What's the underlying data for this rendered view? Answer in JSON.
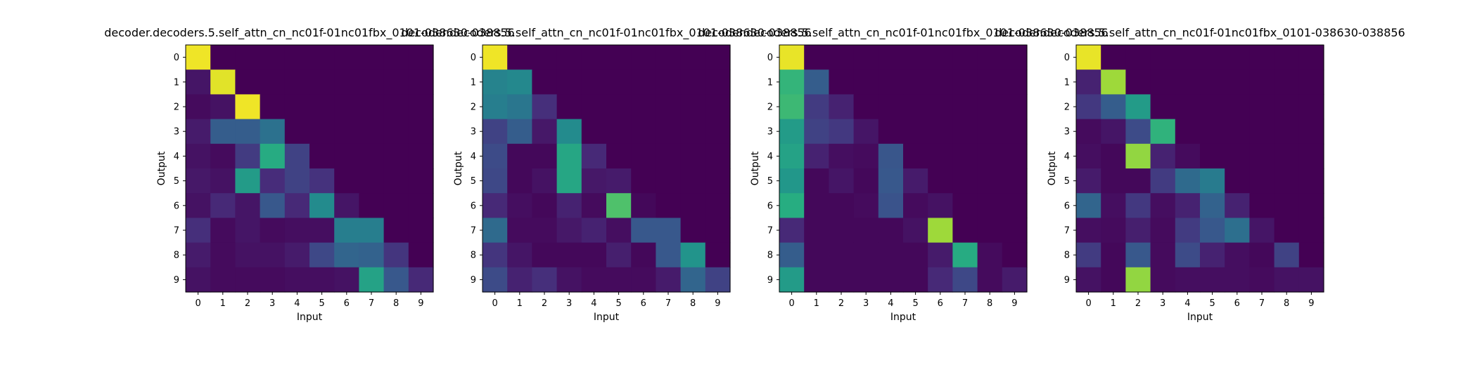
{
  "chart_data": [
    {
      "type": "heatmap",
      "title": "decoder.decoders.5.self_attn_cn_nc01f-01nc01fbx_0101-038630-038856",
      "xlabel": "Input",
      "ylabel": "Output",
      "x_ticks": [
        "0",
        "1",
        "2",
        "3",
        "4",
        "5",
        "6",
        "7",
        "8",
        "9"
      ],
      "y_ticks": [
        "0",
        "1",
        "2",
        "3",
        "4",
        "5",
        "6",
        "7",
        "8",
        "9"
      ],
      "colormap": "viridis",
      "value_range": [
        0,
        1
      ],
      "values": [
        [
          0.98,
          0,
          0,
          0,
          0,
          0,
          0,
          0,
          0,
          0
        ],
        [
          0.06,
          0.96,
          0,
          0,
          0,
          0,
          0,
          0,
          0,
          0
        ],
        [
          0.03,
          0.05,
          0.98,
          0,
          0,
          0,
          0,
          0,
          0,
          0
        ],
        [
          0.08,
          0.3,
          0.3,
          0.38,
          0,
          0,
          0,
          0,
          0,
          0
        ],
        [
          0.05,
          0.03,
          0.18,
          0.62,
          0.2,
          0,
          0,
          0,
          0,
          0
        ],
        [
          0.07,
          0.05,
          0.55,
          0.13,
          0.2,
          0.15,
          0,
          0,
          0,
          0
        ],
        [
          0.05,
          0.12,
          0.06,
          0.28,
          0.12,
          0.48,
          0.06,
          0,
          0,
          0
        ],
        [
          0.14,
          0.03,
          0.06,
          0.03,
          0.04,
          0.04,
          0.43,
          0.43,
          0,
          0
        ],
        [
          0.08,
          0.03,
          0.05,
          0.05,
          0.08,
          0.22,
          0.33,
          0.32,
          0.16,
          0
        ],
        [
          0.05,
          0.03,
          0.03,
          0.03,
          0.04,
          0.04,
          0.05,
          0.58,
          0.28,
          0.12
        ]
      ]
    },
    {
      "type": "heatmap",
      "title": "decoder.decoders.5.self_attn_cn_nc01f-01nc01fbx_0101-038630-038856",
      "xlabel": "Input",
      "ylabel": "Output",
      "x_ticks": [
        "0",
        "1",
        "2",
        "3",
        "4",
        "5",
        "6",
        "7",
        "8",
        "9"
      ],
      "y_ticks": [
        "0",
        "1",
        "2",
        "3",
        "4",
        "5",
        "6",
        "7",
        "8",
        "9"
      ],
      "colormap": "viridis",
      "value_range": [
        0,
        1
      ],
      "values": [
        [
          0.98,
          0,
          0,
          0,
          0,
          0,
          0,
          0,
          0,
          0
        ],
        [
          0.45,
          0.47,
          0,
          0,
          0,
          0,
          0,
          0,
          0,
          0
        ],
        [
          0.43,
          0.4,
          0.14,
          0,
          0,
          0,
          0,
          0,
          0,
          0
        ],
        [
          0.2,
          0.3,
          0.07,
          0.48,
          0,
          0,
          0,
          0,
          0,
          0
        ],
        [
          0.23,
          0.02,
          0.02,
          0.6,
          0.12,
          0,
          0,
          0,
          0,
          0
        ],
        [
          0.22,
          0.02,
          0.05,
          0.6,
          0.07,
          0.08,
          0,
          0,
          0,
          0
        ],
        [
          0.12,
          0.04,
          0.02,
          0.1,
          0.03,
          0.72,
          0.02,
          0,
          0,
          0
        ],
        [
          0.35,
          0.03,
          0.03,
          0.07,
          0.1,
          0.04,
          0.28,
          0.28,
          0,
          0
        ],
        [
          0.16,
          0.06,
          0.02,
          0.02,
          0.02,
          0.09,
          0.02,
          0.28,
          0.52,
          0
        ],
        [
          0.23,
          0.1,
          0.14,
          0.05,
          0.03,
          0.03,
          0.03,
          0.08,
          0.33,
          0.2
        ]
      ]
    },
    {
      "type": "heatmap",
      "title": "decoder.decoders.5.self_attn_cn_nc01f-01nc01fbx_0101-038630-038856",
      "xlabel": "Input",
      "ylabel": "Output",
      "x_ticks": [
        "0",
        "1",
        "2",
        "3",
        "4",
        "5",
        "6",
        "7",
        "8",
        "9"
      ],
      "y_ticks": [
        "0",
        "1",
        "2",
        "3",
        "4",
        "5",
        "6",
        "7",
        "8",
        "9"
      ],
      "colormap": "viridis",
      "value_range": [
        0,
        1
      ],
      "values": [
        [
          0.97,
          0,
          0,
          0,
          0,
          0,
          0,
          0,
          0,
          0
        ],
        [
          0.66,
          0.3,
          0,
          0,
          0,
          0,
          0,
          0,
          0,
          0
        ],
        [
          0.68,
          0.18,
          0.1,
          0,
          0,
          0,
          0,
          0,
          0,
          0
        ],
        [
          0.55,
          0.2,
          0.17,
          0.06,
          0,
          0,
          0,
          0,
          0,
          0
        ],
        [
          0.58,
          0.1,
          0.04,
          0.03,
          0.27,
          0,
          0,
          0,
          0,
          0
        ],
        [
          0.53,
          0.02,
          0.06,
          0.02,
          0.28,
          0.08,
          0,
          0,
          0,
          0
        ],
        [
          0.63,
          0.02,
          0.02,
          0.03,
          0.26,
          0.03,
          0.05,
          0,
          0,
          0
        ],
        [
          0.12,
          0.02,
          0.02,
          0.02,
          0.02,
          0.05,
          0.86,
          0,
          0,
          0
        ],
        [
          0.3,
          0.02,
          0.02,
          0.02,
          0.02,
          0.02,
          0.08,
          0.62,
          0.03,
          0
        ],
        [
          0.55,
          0.02,
          0.02,
          0.02,
          0.02,
          0.02,
          0.12,
          0.22,
          0.03,
          0.08
        ]
      ]
    },
    {
      "type": "heatmap",
      "title": "decoder.decoders.5.self_attn_cn_nc01f-01nc01fbx_0101-038630-038856",
      "xlabel": "Input",
      "ylabel": "Output",
      "x_ticks": [
        "0",
        "1",
        "2",
        "3",
        "4",
        "5",
        "6",
        "7",
        "8",
        "9"
      ],
      "y_ticks": [
        "0",
        "1",
        "2",
        "3",
        "4",
        "5",
        "6",
        "7",
        "8",
        "9"
      ],
      "colormap": "viridis",
      "value_range": [
        0,
        1
      ],
      "values": [
        [
          0.97,
          0,
          0,
          0,
          0,
          0,
          0,
          0,
          0,
          0
        ],
        [
          0.1,
          0.86,
          0,
          0,
          0,
          0,
          0,
          0,
          0,
          0
        ],
        [
          0.17,
          0.3,
          0.55,
          0,
          0,
          0,
          0,
          0,
          0,
          0
        ],
        [
          0.03,
          0.06,
          0.23,
          0.65,
          0,
          0,
          0,
          0,
          0,
          0
        ],
        [
          0.04,
          0.02,
          0.84,
          0.1,
          0.03,
          0,
          0,
          0,
          0,
          0
        ],
        [
          0.08,
          0.02,
          0.02,
          0.18,
          0.35,
          0.42,
          0,
          0,
          0,
          0
        ],
        [
          0.33,
          0.04,
          0.17,
          0.04,
          0.1,
          0.32,
          0.1,
          0,
          0,
          0
        ],
        [
          0.04,
          0.03,
          0.09,
          0.03,
          0.18,
          0.28,
          0.37,
          0.06,
          0,
          0
        ],
        [
          0.18,
          0.02,
          0.28,
          0.03,
          0.23,
          0.1,
          0.04,
          0.02,
          0.2,
          0
        ],
        [
          0.05,
          0.02,
          0.84,
          0.03,
          0.04,
          0.04,
          0.04,
          0.03,
          0.05,
          0.05
        ]
      ]
    }
  ],
  "colors": {
    "background": "#ffffff",
    "axes_frame": "#000000",
    "text": "#000000"
  }
}
